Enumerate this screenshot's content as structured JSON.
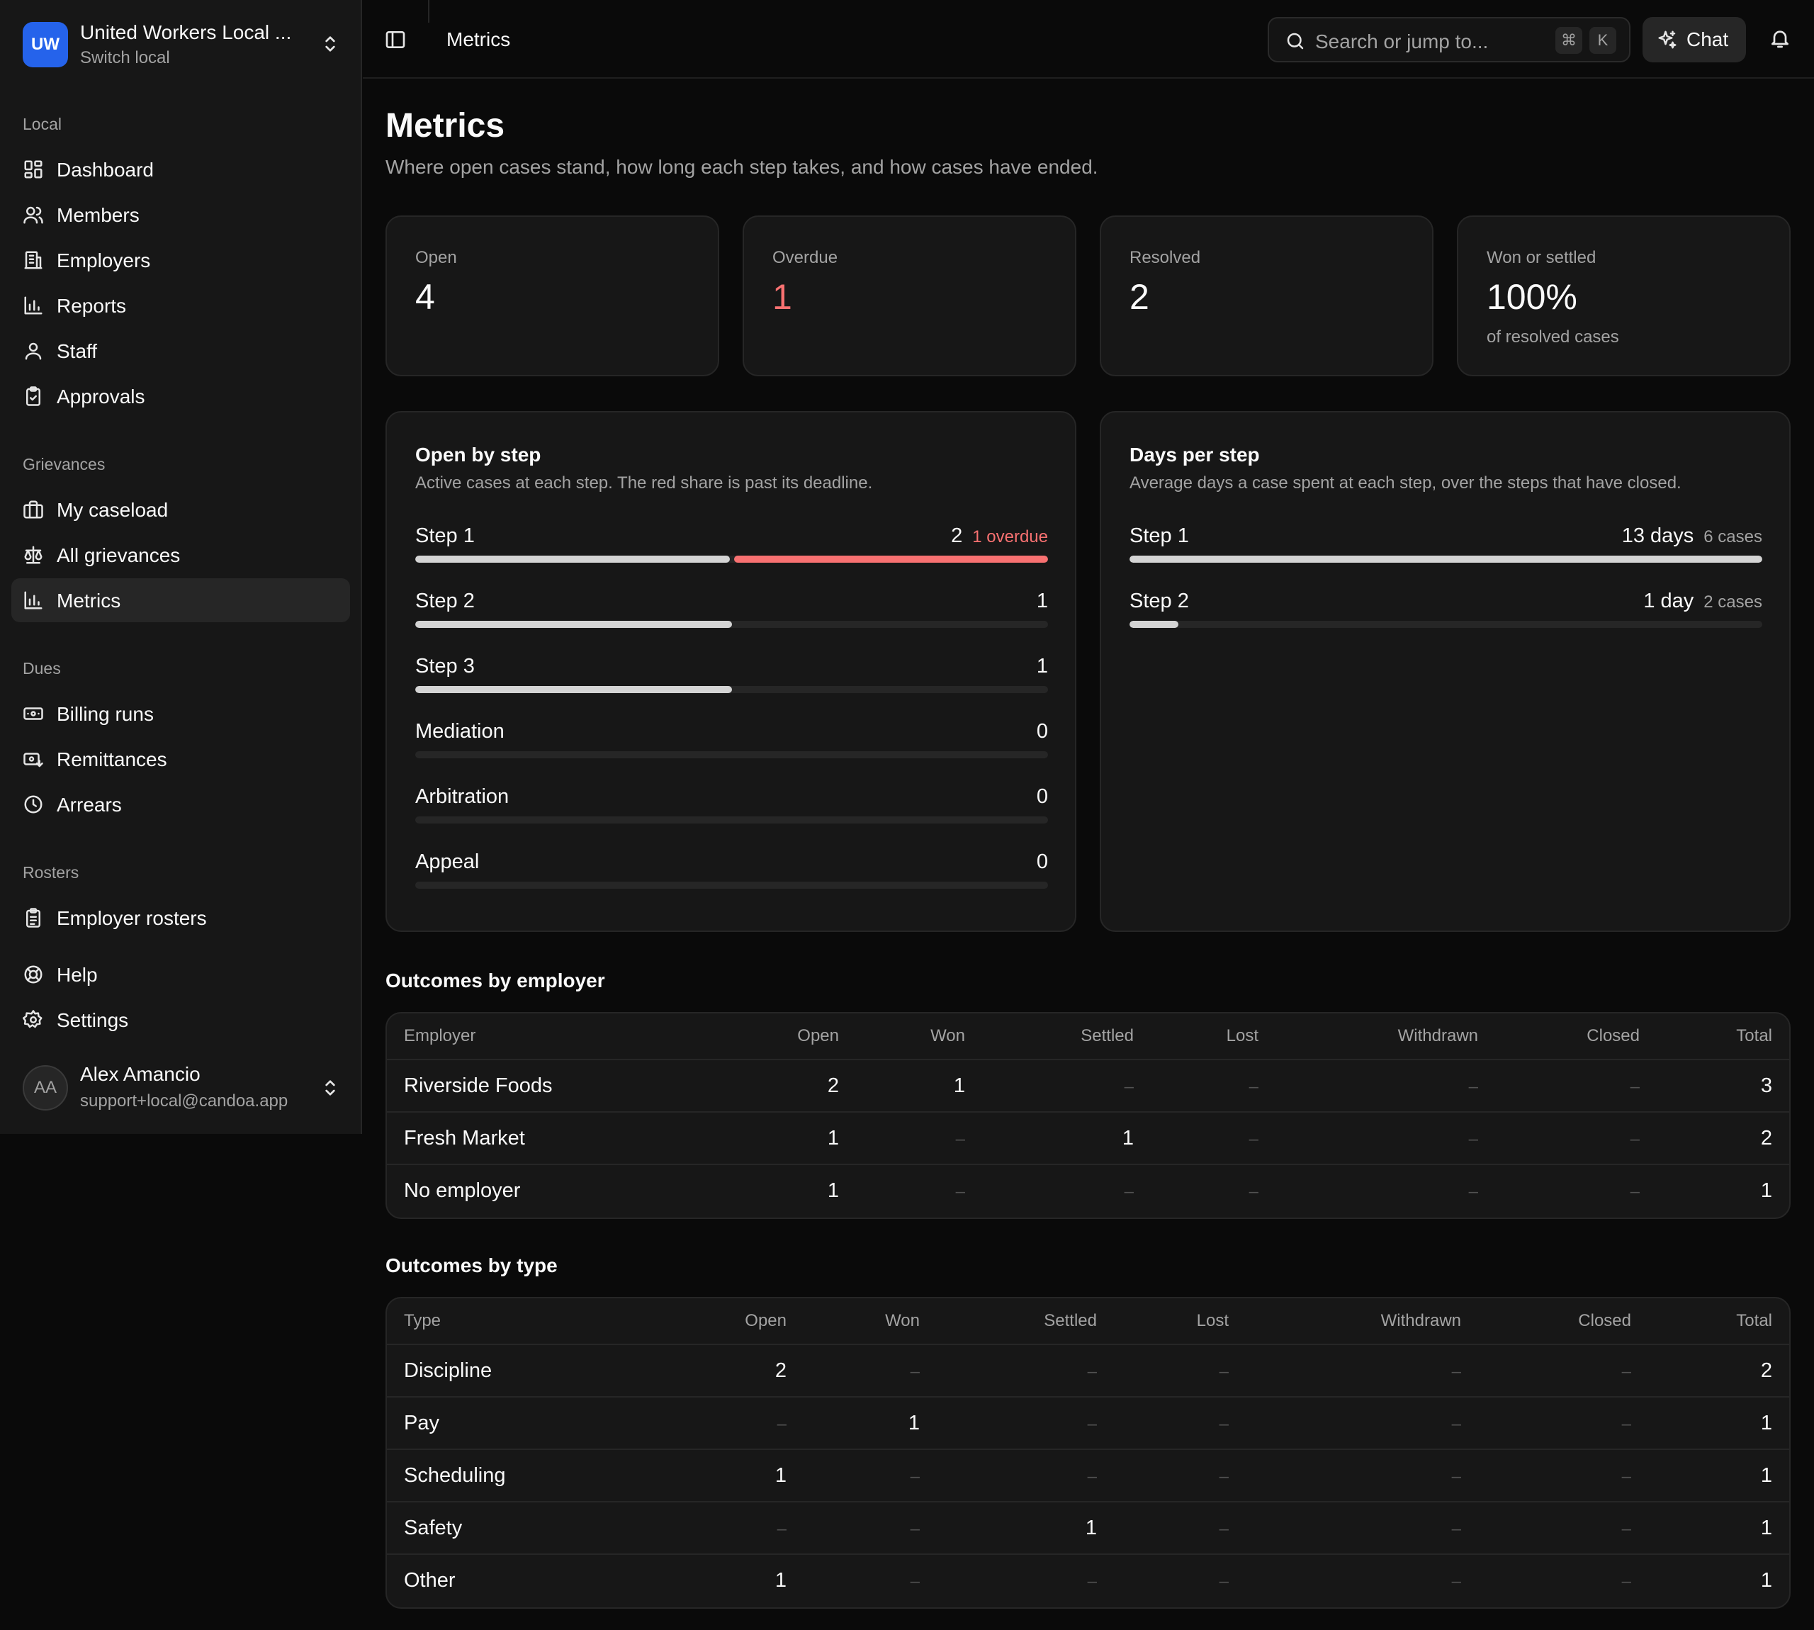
{
  "org": {
    "initials": "UW",
    "name": "United Workers Local ...",
    "sub": "Switch local"
  },
  "nav": {
    "local_label": "Local",
    "local": [
      "Dashboard",
      "Members",
      "Employers",
      "Reports",
      "Staff",
      "Approvals"
    ],
    "grievances_label": "Grievances",
    "grievances": [
      "My caseload",
      "All grievances",
      "Metrics"
    ],
    "dues_label": "Dues",
    "dues": [
      "Billing runs",
      "Remittances",
      "Arrears"
    ],
    "rosters_label": "Rosters",
    "rosters": [
      "Employer rosters"
    ],
    "bottom": [
      "Help",
      "Settings"
    ]
  },
  "user": {
    "initials": "AA",
    "name": "Alex Amancio",
    "email": "support+local@candoa.app"
  },
  "topbar": {
    "breadcrumb": "Metrics",
    "search_placeholder": "Search or jump to...",
    "kbd1": "⌘",
    "kbd2": "K",
    "chat_label": "Chat"
  },
  "page": {
    "title": "Metrics",
    "subtitle": "Where open cases stand, how long each step takes, and how cases have ended."
  },
  "stats": [
    {
      "label": "Open",
      "value": "4"
    },
    {
      "label": "Overdue",
      "value": "1"
    },
    {
      "label": "Resolved",
      "value": "2"
    },
    {
      "label": "Won or settled",
      "value": "100%",
      "note": "of resolved cases"
    }
  ],
  "open_by_step": {
    "title": "Open by step",
    "subtitle": "Active cases at each step. The red share is past its deadline.",
    "rows": [
      {
        "label": "Step 1",
        "value": "2",
        "extra": "1 overdue",
        "total": 2,
        "overdue": 1
      },
      {
        "label": "Step 2",
        "value": "1",
        "extra": "",
        "total": 1,
        "overdue": 0
      },
      {
        "label": "Step 3",
        "value": "1",
        "extra": "",
        "total": 1,
        "overdue": 0
      },
      {
        "label": "Mediation",
        "value": "0",
        "extra": "",
        "total": 0,
        "overdue": 0
      },
      {
        "label": "Arbitration",
        "value": "0",
        "extra": "",
        "total": 0,
        "overdue": 0
      },
      {
        "label": "Appeal",
        "value": "0",
        "extra": "",
        "total": 0,
        "overdue": 0
      }
    ],
    "scale_max": 2
  },
  "days_per_step": {
    "title": "Days per step",
    "subtitle": "Average days a case spent at each step, over the steps that have closed.",
    "rows": [
      {
        "label": "Step 1",
        "value": "13 days",
        "extra": "6 cases",
        "days": 13
      },
      {
        "label": "Step 2",
        "value": "1 day",
        "extra": "2 cases",
        "days": 1
      }
    ],
    "scale_max": 13
  },
  "outcomes_by_employer": {
    "title": "Outcomes by employer",
    "headers": [
      "Employer",
      "Open",
      "Won",
      "Settled",
      "Lost",
      "Withdrawn",
      "Closed",
      "Total"
    ],
    "rows": [
      [
        "Riverside Foods",
        "2",
        "1",
        "–",
        "–",
        "–",
        "–",
        "3"
      ],
      [
        "Fresh Market",
        "1",
        "–",
        "1",
        "–",
        "–",
        "–",
        "2"
      ],
      [
        "No employer",
        "1",
        "–",
        "–",
        "–",
        "–",
        "–",
        "1"
      ]
    ]
  },
  "outcomes_by_type": {
    "title": "Outcomes by type",
    "headers": [
      "Type",
      "Open",
      "Won",
      "Settled",
      "Lost",
      "Withdrawn",
      "Closed",
      "Total"
    ],
    "rows": [
      [
        "Discipline",
        "2",
        "–",
        "–",
        "–",
        "–",
        "–",
        "2"
      ],
      [
        "Pay",
        "–",
        "1",
        "–",
        "–",
        "–",
        "–",
        "1"
      ],
      [
        "Scheduling",
        "1",
        "–",
        "–",
        "–",
        "–",
        "–",
        "1"
      ],
      [
        "Safety",
        "–",
        "–",
        "1",
        "–",
        "–",
        "–",
        "1"
      ],
      [
        "Other",
        "1",
        "–",
        "–",
        "–",
        "–",
        "–",
        "1"
      ]
    ]
  },
  "colors": {
    "accent": "#2563eb",
    "danger": "#f87171",
    "bar": "#d4d4d4",
    "track": "#262626"
  }
}
